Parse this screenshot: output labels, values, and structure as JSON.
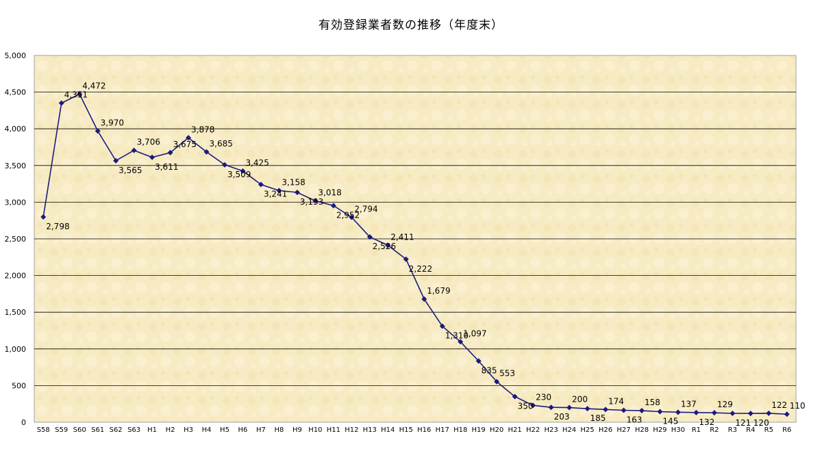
{
  "chart_data": {
    "type": "line",
    "title": "有効登録業者数の推移（年度末）",
    "xlabel": "",
    "ylabel": "",
    "ylim": [
      0,
      5000
    ],
    "yticks": [
      0,
      500,
      1000,
      1500,
      2000,
      2500,
      3000,
      3500,
      4000,
      4500,
      5000
    ],
    "ytick_labels": [
      "0",
      "500",
      "1,000",
      "1,500",
      "2,000",
      "2,500",
      "3,000",
      "3,500",
      "4,000",
      "4,500",
      "5,000"
    ],
    "grid": true,
    "legend": "none",
    "colors": {
      "line": "#1a1a80",
      "plot_bg": "#f7ebc3",
      "grid": "#000000"
    },
    "categories": [
      "S58",
      "S59",
      "S60",
      "S61",
      "S62",
      "S63",
      "H1",
      "H2",
      "H3",
      "H4",
      "H5",
      "H6",
      "H7",
      "H8",
      "H9",
      "H10",
      "H11",
      "H12",
      "H13",
      "H14",
      "H15",
      "H16",
      "H17",
      "H18",
      "H19",
      "H20",
      "H21",
      "H22",
      "H23",
      "H24",
      "H25",
      "H26",
      "H27",
      "H28",
      "H29",
      "H30",
      "R1",
      "R2",
      "R3",
      "R4",
      "R5",
      "R6"
    ],
    "series": [
      {
        "values": [
          2798,
          4351,
          4472,
          3970,
          3565,
          3706,
          3611,
          3675,
          3878,
          3685,
          3509,
          3425,
          3241,
          3158,
          3133,
          3018,
          2952,
          2794,
          2526,
          2411,
          2222,
          1679,
          1310,
          1097,
          835,
          553,
          350,
          230,
          203,
          200,
          185,
          174,
          163,
          158,
          145,
          137,
          132,
          129,
          121,
          120,
          122,
          110
        ],
        "labels": [
          "2,798",
          "4,351",
          "4,472",
          "3,970",
          "3,565",
          "3,706",
          "3,611",
          "3,675",
          "3,878",
          "3,685",
          "3,509",
          "3,425",
          "3,241",
          "3,158",
          "3,133",
          "3,018",
          "2,952",
          "2,794",
          "2,526",
          "2,411",
          "2,222",
          "1,679",
          "1,310",
          "1,097",
          "835",
          "553",
          "350",
          "230",
          "203",
          "200",
          "185",
          "174",
          "163",
          "158",
          "145",
          "137",
          "132",
          "129",
          "121",
          "120",
          "122",
          "110"
        ]
      }
    ]
  }
}
